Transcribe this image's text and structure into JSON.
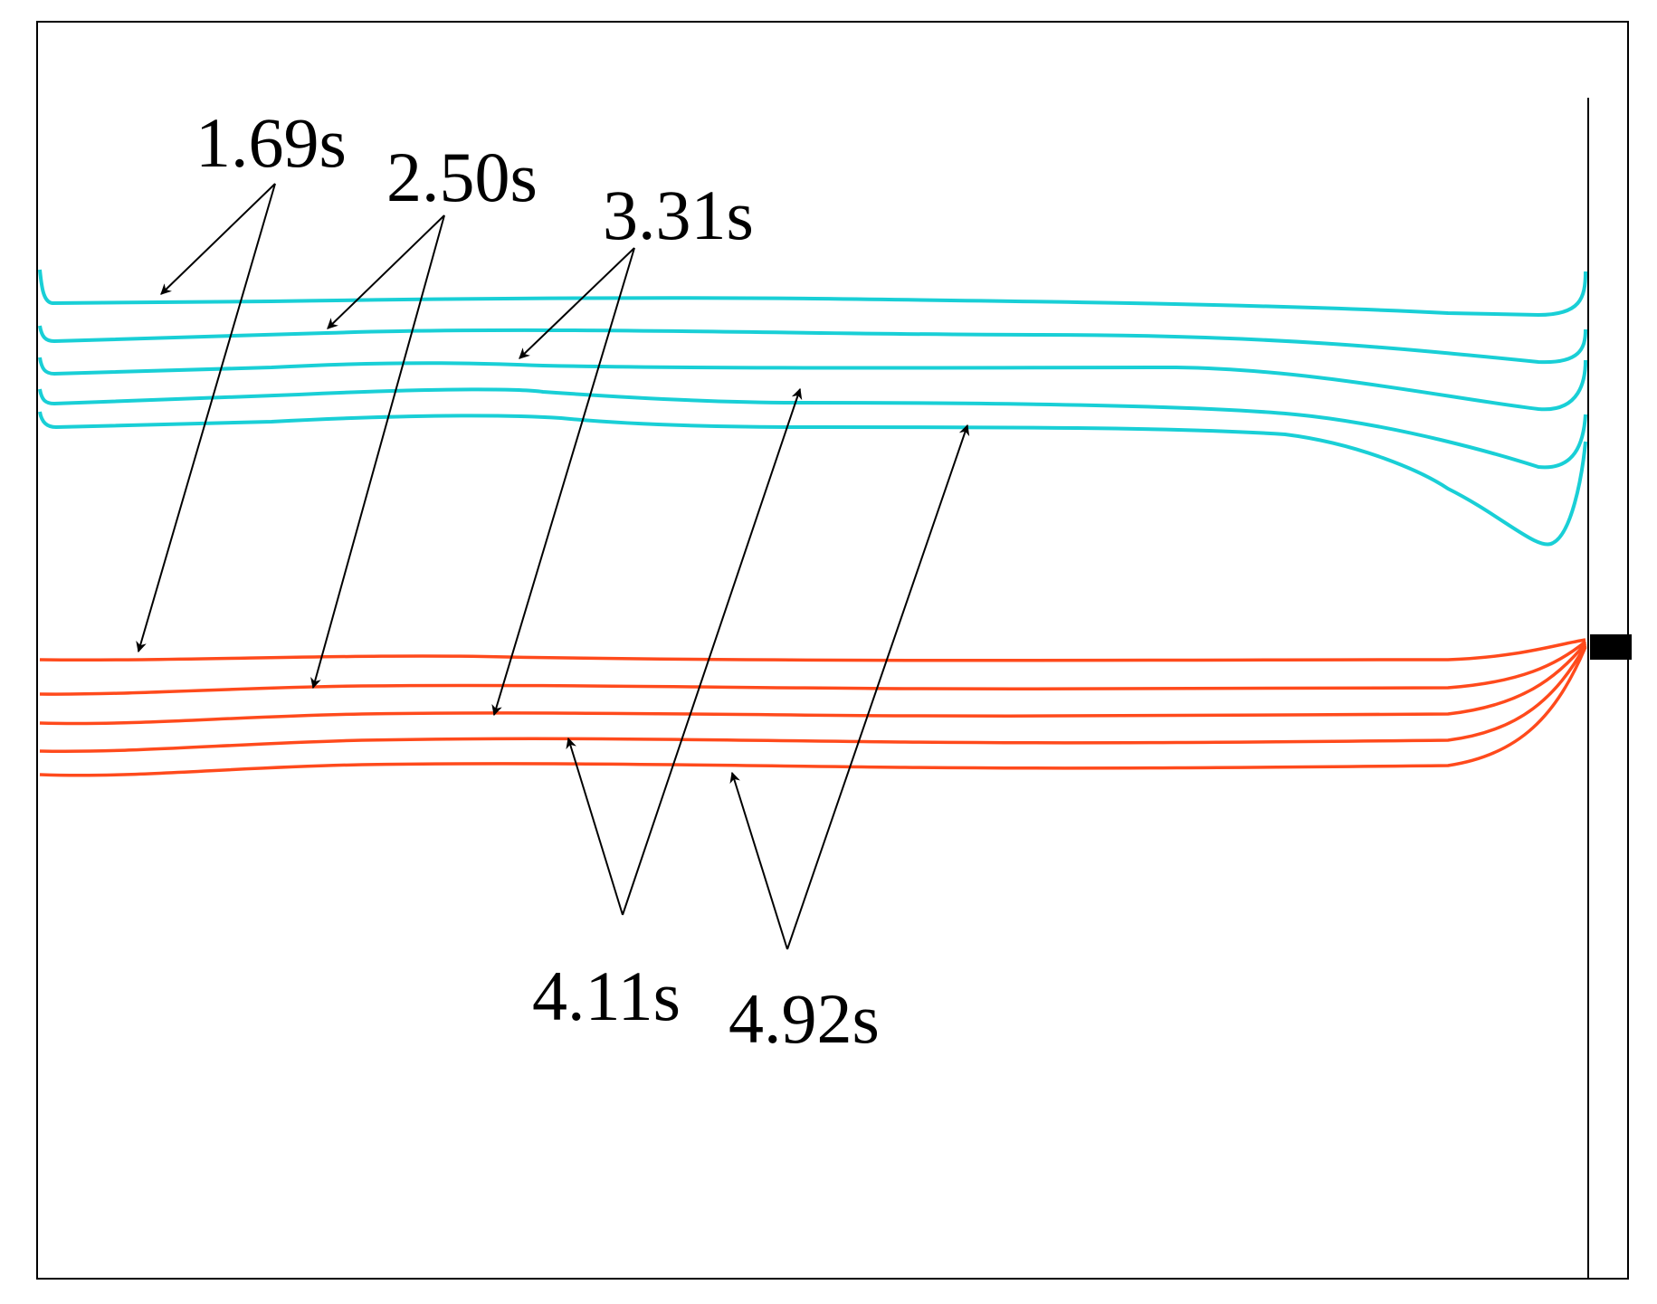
{
  "labels": {
    "t1": "1.69s",
    "t2": "2.50s",
    "t3": "3.31s",
    "t4": "4.11s",
    "t5": "4.92s"
  },
  "colors": {
    "cyan": "#19cfd6",
    "orange": "#ff4a1c",
    "frame": "#000000",
    "background": "#ffffff"
  }
}
